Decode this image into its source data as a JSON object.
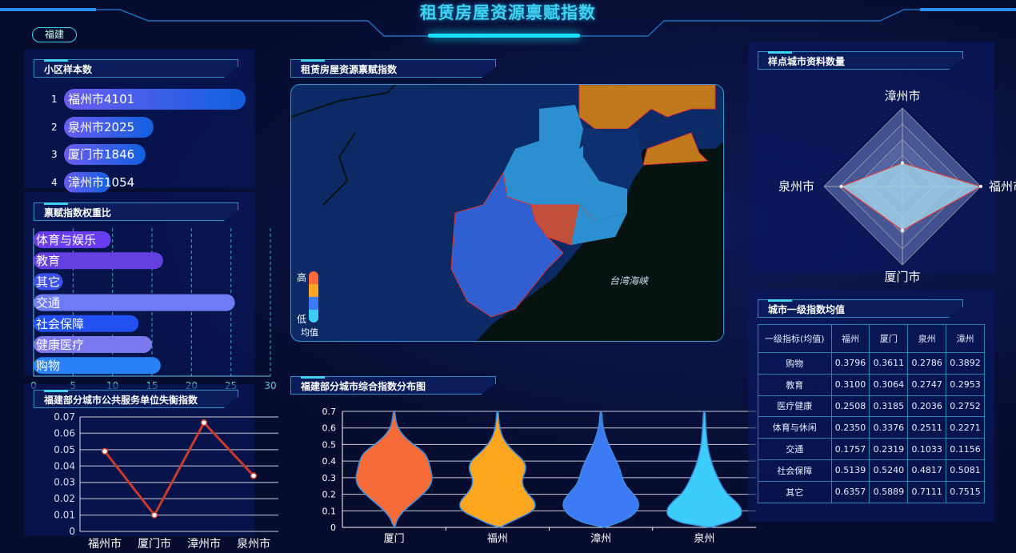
{
  "title": "租赁房屋资源禀赋指数",
  "region_pill": "福建",
  "sample_panel": {
    "title": "小区样本数",
    "items": [
      {
        "rank": "1",
        "label": "福州市4101",
        "value": 4101
      },
      {
        "rank": "2",
        "label": "泉州市2025",
        "value": 2025
      },
      {
        "rank": "3",
        "label": "厦门市1846",
        "value": 1846
      },
      {
        "rank": "4",
        "label": "漳州市1054",
        "value": 1054
      }
    ]
  },
  "map_panel": {
    "title": "租赁房屋资源禀赋指数",
    "legend_high": "高",
    "legend_low": "低",
    "legend_title": "均值",
    "legend_colors": [
      "#f76b38",
      "#ffa620",
      "#3c7bf5",
      "#3ccdfa"
    ],
    "sea_label": "台湾海峡"
  },
  "violin_panel": {
    "title": "福建部分城市综合指数分布图"
  },
  "weight_panel": {
    "title": "禀赋指数权重比"
  },
  "line_panel": {
    "title": "福建部分城市公共服务单位失衡指数"
  },
  "radar_panel": {
    "title": "样点城市资料数量"
  },
  "table_panel": {
    "title": "城市一级指数均值",
    "headers": [
      "一级指标(均值)",
      "福州",
      "厦门",
      "泉州",
      "漳州"
    ],
    "rows": [
      [
        "购物",
        "0.3796",
        "0.3611",
        "0.2786",
        "0.3892"
      ],
      [
        "教育",
        "0.3100",
        "0.3064",
        "0.2747",
        "0.2953"
      ],
      [
        "医疗健康",
        "0.2508",
        "0.3185",
        "0.2036",
        "0.2752"
      ],
      [
        "体育与休闲",
        "0.2350",
        "0.3376",
        "0.2511",
        "0.2271"
      ],
      [
        "交通",
        "0.1757",
        "0.2319",
        "0.1033",
        "0.1156"
      ],
      [
        "社会保障",
        "0.5139",
        "0.5240",
        "0.4817",
        "0.5081"
      ],
      [
        "其它",
        "0.6357",
        "0.5889",
        "0.7111",
        "0.7515"
      ]
    ]
  },
  "chart_data": [
    {
      "type": "bar",
      "orientation": "horizontal",
      "categories": [
        "体育与娱乐",
        "教育",
        "其它",
        "交通",
        "社会保障",
        "健康医疗",
        "购物"
      ],
      "values": [
        9.8,
        16.4,
        3.7,
        25.5,
        13.3,
        15,
        16.1
      ],
      "colors": [
        "#6a3cf0",
        "#6440e0",
        "#3a50e8",
        "#6f7cf5",
        "#2350f0",
        "#7b78ee",
        "#2a80f5"
      ],
      "xlim": [
        0,
        30
      ],
      "xticks": [
        "0",
        "5",
        "10",
        "15",
        "20",
        "25",
        "30"
      ],
      "grid": "dashed-vertical"
    },
    {
      "type": "line",
      "categories": [
        "福州市",
        "厦门市",
        "漳州市",
        "泉州市"
      ],
      "values": [
        0.049,
        0.01,
        0.0665,
        0.034
      ],
      "ylim": [
        0,
        0.07
      ],
      "yticks": [
        "0",
        "0.01",
        "0.02",
        "0.03",
        "0.04",
        "0.05",
        "0.06",
        "0.07"
      ],
      "color": "#c83a2a",
      "grid": true
    },
    {
      "type": "radar",
      "indicators": [
        "漳州市",
        "福州市",
        "厦门市",
        "泉州市"
      ],
      "values": [
        0.3,
        1.0,
        0.56,
        0.78
      ],
      "max": 1
    },
    {
      "type": "violin",
      "categories": [
        "厦门",
        "福州",
        "漳州",
        "泉州"
      ],
      "colors": [
        "#f76b38",
        "#ffa620",
        "#3c7bf5",
        "#3ccdfa"
      ],
      "ylim": [
        0,
        0.7
      ],
      "yticks": [
        "0",
        "0.1",
        "0.2",
        "0.3",
        "0.4",
        "0.5",
        "0.6",
        "0.7"
      ],
      "density_y": [
        0,
        0.05,
        0.1,
        0.15,
        0.2,
        0.25,
        0.3,
        0.35,
        0.4,
        0.45,
        0.5,
        0.55,
        0.6,
        0.65,
        0.7
      ],
      "densities": [
        [
          0.02,
          0.08,
          0.25,
          0.5,
          0.75,
          0.95,
          1.0,
          0.95,
          0.9,
          0.8,
          0.5,
          0.25,
          0.1,
          0.04,
          0.02
        ],
        [
          0.05,
          0.5,
          0.95,
          1.0,
          0.8,
          0.65,
          0.65,
          0.75,
          0.7,
          0.45,
          0.25,
          0.12,
          0.06,
          0.03,
          0.02
        ],
        [
          0.1,
          0.7,
          0.95,
          1.0,
          0.85,
          0.65,
          0.55,
          0.5,
          0.4,
          0.3,
          0.2,
          0.12,
          0.06,
          0.03,
          0.02
        ],
        [
          0.15,
          0.9,
          1.0,
          0.85,
          0.6,
          0.45,
          0.35,
          0.25,
          0.18,
          0.12,
          0.08,
          0.06,
          0.04,
          0.03,
          0.02
        ]
      ]
    }
  ]
}
